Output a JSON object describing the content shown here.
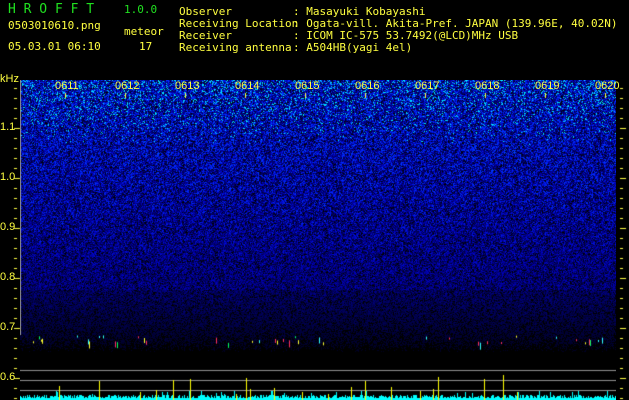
{
  "app": {
    "title": "H R O F F T",
    "version": "1.0.0"
  },
  "file": {
    "name": "0503010610.png",
    "datetime": "05.03.01 06:10"
  },
  "meteor": {
    "label": "meteor",
    "count": "17"
  },
  "info": [
    {
      "label": "Observer",
      "value": ": Masayuki Kobayashi"
    },
    {
      "label": "Receiving Location",
      "value": ": Ogata-vill. Akita-Pref. JAPAN (139.96E, 40.02N)"
    },
    {
      "label": "Receiver",
      "value": ": ICOM IC-575 53.7492(@LCD)MHz USB"
    },
    {
      "label": "Receiving antenna",
      "value": ": A504HB(yagi 4el)"
    }
  ],
  "chart_data": {
    "type": "heatmap",
    "ylabel": "kHz",
    "yticks": [
      "1.1",
      "1.0",
      "0.9",
      "0.8",
      "0.7",
      "0.6"
    ],
    "ylim": [
      0.6,
      1.2
    ],
    "xticks": [
      "0611",
      "0612",
      "0613",
      "0614",
      "0615",
      "0616",
      "0617",
      "0618",
      "0619",
      "0620"
    ],
    "meteor_echo_band_khz": 0.67
  },
  "colors": {
    "text": "#ffff40",
    "title": "#20e020",
    "noise": "#1a2aff",
    "level": "#00ffff",
    "spike": "#ffff00"
  }
}
